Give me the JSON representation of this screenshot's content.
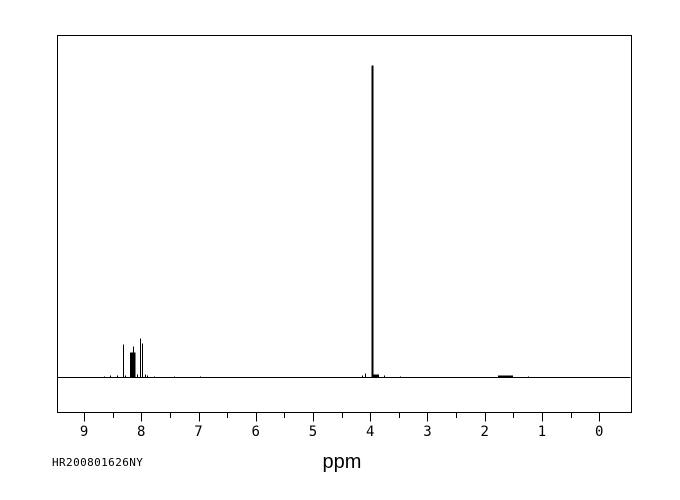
{
  "meta": {
    "background_color": "#ffffff",
    "line_color": "#000000",
    "description": "1H NMR spectrum plot"
  },
  "footer": {
    "sample_id": "HR200801626NY"
  },
  "chart_data": {
    "type": "line",
    "title": "",
    "xlabel": "ppm",
    "ylabel": "",
    "grid": false,
    "legend": "none",
    "x_axis": {
      "unit": "ppm",
      "inverted": true,
      "shown_range": [
        9.5,
        -0.55
      ],
      "major_ticks": [
        9,
        8,
        7,
        6,
        5,
        4,
        3,
        2,
        1,
        0
      ],
      "minor_ticks": [
        8.5,
        7.5,
        6.5,
        5.5,
        4.5,
        3.5,
        2.5,
        1.5,
        0.5
      ]
    },
    "intensity_unit": "px-height (max peak = 312)",
    "peaks": [
      {
        "ppm": 8.65,
        "intensity": 1
      },
      {
        "ppm": 8.55,
        "intensity": 2
      },
      {
        "ppm": 8.43,
        "intensity": 2
      },
      {
        "ppm": 8.32,
        "intensity": 33
      },
      {
        "ppm": 8.28,
        "intensity": 2
      },
      {
        "ppm": 8.2,
        "ppm_end": 8.1,
        "intensity": 25
      },
      {
        "ppm": 8.15,
        "intensity": 31
      },
      {
        "ppm": 8.07,
        "intensity": 3
      },
      {
        "ppm": 8.02,
        "intensity": 39
      },
      {
        "ppm": 7.98,
        "intensity": 34
      },
      {
        "ppm": 7.94,
        "intensity": 3
      },
      {
        "ppm": 7.9,
        "intensity": 2
      },
      {
        "ppm": 7.78,
        "intensity": 1
      },
      {
        "ppm": 7.43,
        "intensity": 1
      },
      {
        "ppm": 6.98,
        "intensity": 1
      },
      {
        "ppm": 4.15,
        "intensity": 2
      },
      {
        "ppm": 4.09,
        "intensity": 4
      },
      {
        "ppm": 3.97,
        "intensity": 312,
        "width": 2
      },
      {
        "ppm": 3.94,
        "ppm_end": 3.85,
        "intensity": 3
      },
      {
        "ppm": 3.76,
        "intensity": 2
      },
      {
        "ppm": 3.48,
        "intensity": 1
      },
      {
        "ppm": 1.77,
        "ppm_end": 1.51,
        "intensity": 2
      },
      {
        "ppm": 1.25,
        "intensity": 1
      }
    ]
  }
}
